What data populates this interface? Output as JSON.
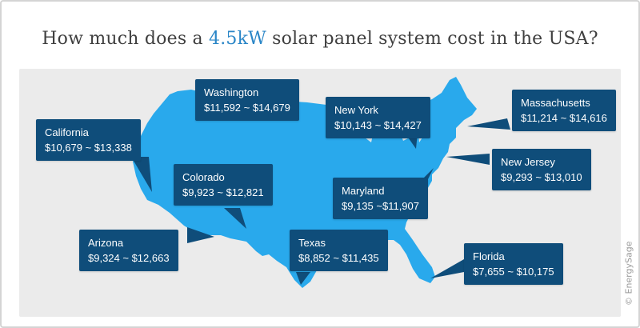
{
  "title": {
    "before": "How much does a ",
    "highlight": "4.5kW",
    "after": " solar panel system cost in the USA?"
  },
  "colors": {
    "accent": "#2a86c7",
    "map_fill": "#29a9ec",
    "callout_bg": "#0f4d7a",
    "panel_bg": "#ebebeb"
  },
  "states": [
    {
      "id": "washington",
      "name": "Washington",
      "price": "$11,592 ~ $14,679"
    },
    {
      "id": "new-york",
      "name": "New York",
      "price": "$10,143 ~ $14,427"
    },
    {
      "id": "massachusetts",
      "name": "Massachusetts",
      "price": "$11,214 ~ $14,616"
    },
    {
      "id": "california",
      "name": "California",
      "price": "$10,679 ~ $13,338"
    },
    {
      "id": "colorado",
      "name": "Colorado",
      "price": "$9,923 ~ $12,821"
    },
    {
      "id": "new-jersey",
      "name": "New Jersey",
      "price": "$9,293 ~ $13,010"
    },
    {
      "id": "maryland",
      "name": "Maryland",
      "price": "$9,135 ~$11,907"
    },
    {
      "id": "arizona",
      "name": "Arizona",
      "price": "$9,324 ~ $12,663"
    },
    {
      "id": "texas",
      "name": "Texas",
      "price": "$8,852 ~ $11,435"
    },
    {
      "id": "florida",
      "name": "Florida",
      "price": "$7,655 ~ $10,175"
    }
  ],
  "watermark": "© EnergySage"
}
